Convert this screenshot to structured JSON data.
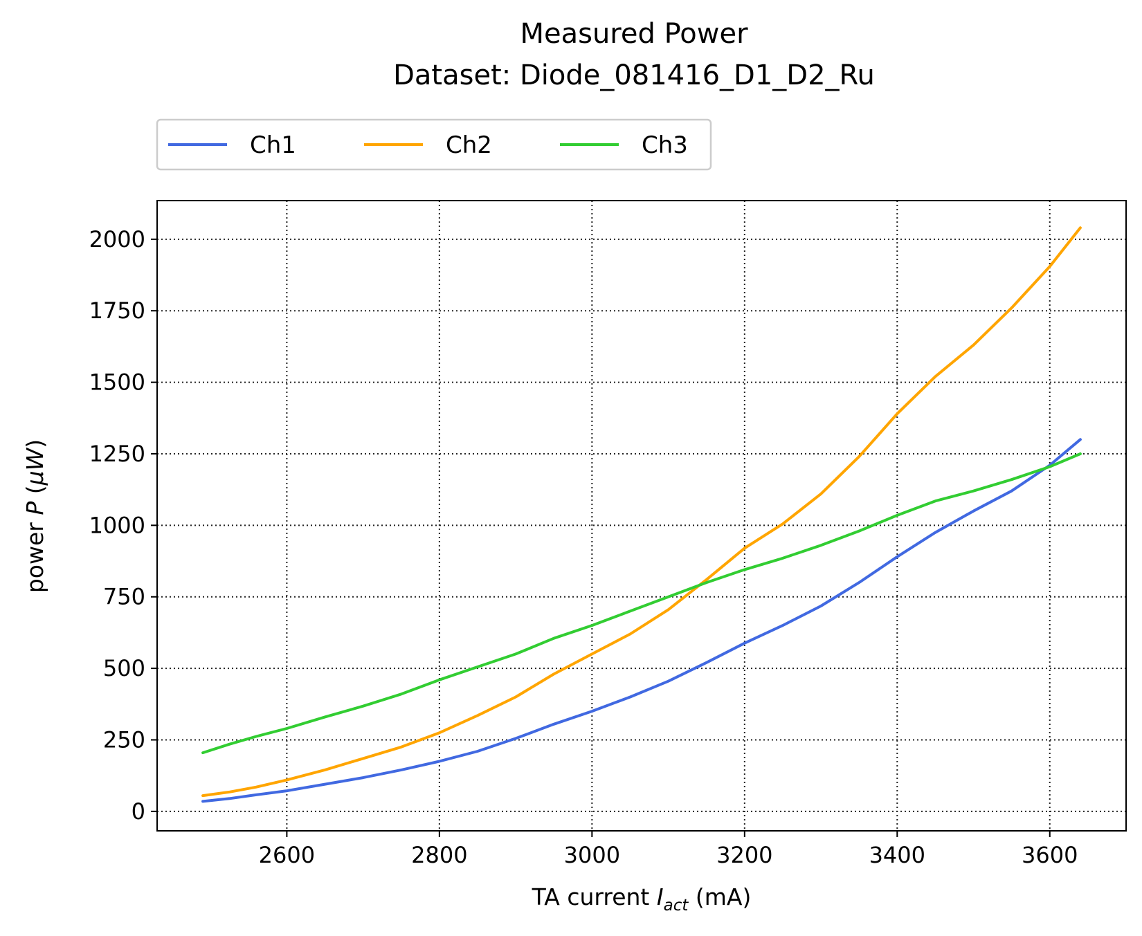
{
  "chart_data": {
    "type": "line",
    "title": "Measured Power",
    "subtitle": "Dataset: Diode_081416_D1_D2_Ru",
    "xlabel": {
      "main": "TA current ",
      "var": "I",
      "sub": "act",
      "unit": " (mA)"
    },
    "ylabel": {
      "main": "power ",
      "var": "P",
      "unit_open": " (",
      "unit_var": "μW",
      "unit_close": ")"
    },
    "xlim": [
      2430,
      3700
    ],
    "ylim": [
      -68,
      2135
    ],
    "xticks": [
      2600,
      2800,
      3000,
      3200,
      3400,
      3600
    ],
    "yticks": [
      0,
      250,
      500,
      750,
      1000,
      1250,
      1500,
      1750,
      2000
    ],
    "grid": true,
    "legend_position": "top-left, above plot",
    "series": [
      {
        "name": "Ch1",
        "color": "#4169e1",
        "x": [
          2490,
          2525,
          2560,
          2600,
          2650,
          2700,
          2750,
          2800,
          2850,
          2900,
          2950,
          3000,
          3050,
          3100,
          3150,
          3200,
          3250,
          3300,
          3350,
          3400,
          3450,
          3500,
          3550,
          3600,
          3640
        ],
        "y": [
          35,
          45,
          58,
          72,
          95,
          118,
          145,
          175,
          210,
          255,
          305,
          350,
          400,
          455,
          520,
          588,
          650,
          718,
          800,
          890,
          975,
          1050,
          1120,
          1210,
          1300
        ]
      },
      {
        "name": "Ch2",
        "color": "#ffa500",
        "x": [
          2490,
          2525,
          2560,
          2600,
          2650,
          2700,
          2750,
          2800,
          2850,
          2900,
          2950,
          3000,
          3050,
          3100,
          3150,
          3200,
          3250,
          3300,
          3350,
          3400,
          3450,
          3500,
          3550,
          3600,
          3640
        ],
        "y": [
          55,
          68,
          85,
          110,
          145,
          185,
          225,
          275,
          335,
          400,
          480,
          550,
          620,
          705,
          810,
          920,
          1005,
          1110,
          1240,
          1390,
          1520,
          1630,
          1760,
          1905,
          2040
        ]
      },
      {
        "name": "Ch3",
        "color": "#32cd32",
        "x": [
          2490,
          2525,
          2560,
          2600,
          2650,
          2700,
          2750,
          2800,
          2850,
          2900,
          2950,
          3000,
          3050,
          3100,
          3150,
          3200,
          3250,
          3300,
          3350,
          3400,
          3450,
          3500,
          3550,
          3600,
          3640
        ],
        "y": [
          205,
          235,
          262,
          290,
          330,
          368,
          410,
          460,
          505,
          550,
          605,
          650,
          700,
          750,
          800,
          845,
          885,
          930,
          980,
          1035,
          1085,
          1120,
          1160,
          1205,
          1250
        ]
      }
    ]
  }
}
